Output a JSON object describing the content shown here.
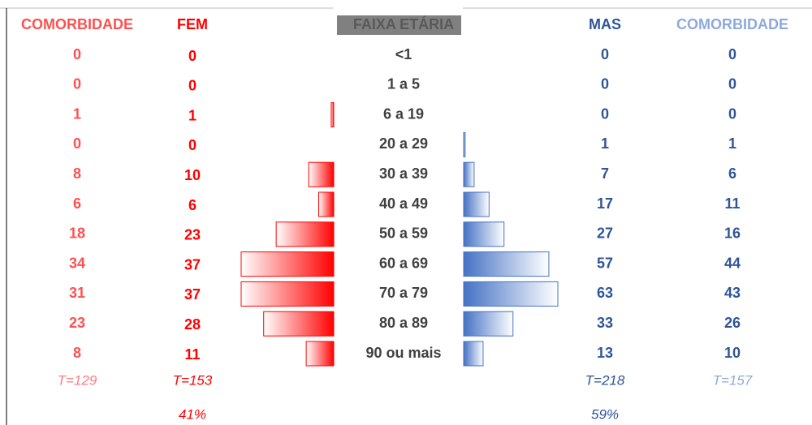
{
  "header": {
    "fem_comorbidity": "COMORBIDADE",
    "fem": "FEM",
    "age": "FAIXA ETÁRIA",
    "mas": "MAS",
    "mas_comorbidity": "COMORBIDADE"
  },
  "rows": [
    {
      "fem_comorbidity": 0,
      "fem": 0,
      "age": "<1",
      "mas": 0,
      "mas_comorbidity": 0
    },
    {
      "fem_comorbidity": 0,
      "fem": 0,
      "age": "1 a 5",
      "mas": 0,
      "mas_comorbidity": 0
    },
    {
      "fem_comorbidity": 1,
      "fem": 1,
      "age": "6 a 19",
      "mas": 0,
      "mas_comorbidity": 0
    },
    {
      "fem_comorbidity": 0,
      "fem": 0,
      "age": "20 a 29",
      "mas": 1,
      "mas_comorbidity": 1
    },
    {
      "fem_comorbidity": 8,
      "fem": 10,
      "age": "30 a 39",
      "mas": 7,
      "mas_comorbidity": 6
    },
    {
      "fem_comorbidity": 6,
      "fem": 6,
      "age": "40 a 49",
      "mas": 17,
      "mas_comorbidity": 11
    },
    {
      "fem_comorbidity": 18,
      "fem": 23,
      "age": "50 a 59",
      "mas": 27,
      "mas_comorbidity": 16
    },
    {
      "fem_comorbidity": 34,
      "fem": 37,
      "age": "60 a 69",
      "mas": 57,
      "mas_comorbidity": 44
    },
    {
      "fem_comorbidity": 31,
      "fem": 37,
      "age": "70 a 79",
      "mas": 63,
      "mas_comorbidity": 43
    },
    {
      "fem_comorbidity": 23,
      "fem": 28,
      "age": "80 a 89",
      "mas": 33,
      "mas_comorbidity": 26
    },
    {
      "fem_comorbidity": 8,
      "fem": 11,
      "age": "90 ou mais",
      "mas": 13,
      "mas_comorbidity": 10
    }
  ],
  "totals": {
    "fem_comorbidity": "T=129",
    "fem": "T=153",
    "mas": "T=218",
    "mas_comorbidity": "T=157"
  },
  "percentages": {
    "fem": "41%",
    "mas": "59%"
  }
}
